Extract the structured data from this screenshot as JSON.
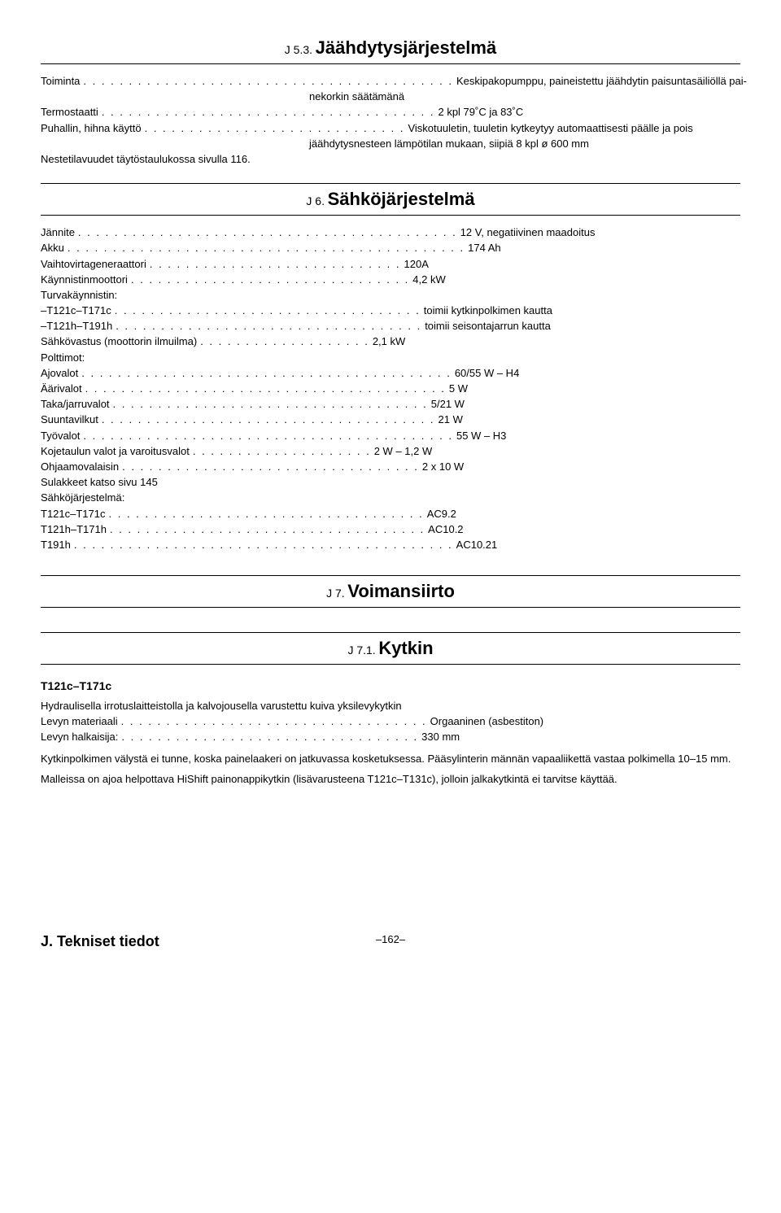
{
  "sections": {
    "j53": {
      "number": "J 5.3.",
      "title": "Jäähdytysjärjestelmä"
    },
    "j6": {
      "number": "J 6.",
      "title": "Sähköjärjestelmä"
    },
    "j7": {
      "number": "J 7.",
      "title": "Voimansiirto"
    },
    "j71": {
      "number": "J 7.1.",
      "title": "Kytkin"
    }
  },
  "j53_specs": [
    {
      "label": "Toiminta",
      "dots": ". . . . . . . . . . . . . . . . . . . . . . . . . . . . . . . . . . . . . . . . .",
      "value": "Keskipakopumppu, paineistettu jäähdytin paisuntasäiliöllä pai-"
    },
    {
      "label": "",
      "dots": "",
      "value": "nekorkin säätämänä",
      "indent": true
    },
    {
      "label": "Termostaatti",
      "dots": ". . . . . . . . . . . . . . . . . . . . . . . . . . . . . . . . . . . . .",
      "value": "2 kpl 79˚C ja 83˚C"
    },
    {
      "label": "Puhallin, hihna käyttö",
      "dots": ". . . . . . . . . . . . . . . . . . . . . . . . . . . . .",
      "value": "Viskotuuletin, tuuletin kytkeytyy automaattisesti päälle ja pois"
    },
    {
      "label": "",
      "dots": "",
      "value": "jäähdytysnesteen lämpötilan mukaan, siipiä 8 kpl ø 600 mm",
      "indent": true
    },
    {
      "label": "Nestetilavuudet täytöstaulukossa sivulla 116.",
      "dots": "",
      "value": ""
    }
  ],
  "j6_specs": [
    {
      "label": "Jännite",
      "dots": ". . . . . . . . . . . . . . . . . . . . . . . . . . . . . . . . . . . . . . . . . .",
      "value": "12 V, negatiivinen maadoitus"
    },
    {
      "label": "Akku",
      "dots": ". . . . . . . . . . . . . . . . . . . . . . . . . . . . . . . . . . . . . . . . . . . .",
      "value": "174 Ah"
    },
    {
      "label": "Vaihtovirtageneraattori",
      "dots": ". . . . . . . . . . . . . . . . . . . . . . . . . . . .",
      "value": "120A"
    },
    {
      "label": "Käynnistinmoottori",
      "dots": ". . . . . . . . . . . . . . . . . . . . . . . . . . . . . . .",
      "value": "4,2 kW"
    },
    {
      "label": "Turvakäynnistin:",
      "dots": "",
      "value": ""
    },
    {
      "label": "–T121c–T171c",
      "dots": ". . . . . . . . . . . . . . . . . . . . . . . . . . . . . . . . . .",
      "value": "toimii kytkinpolkimen kautta"
    },
    {
      "label": "–T121h–T191h",
      "dots": ". . . . . . . . . . . . . . . . . . . . . . . . . . . . . . . . . .",
      "value": "toimii seisontajarrun kautta"
    },
    {
      "label": "Sähkövastus (moottorin ilmuilma)",
      "dots": ". . . . . . . . . . . . . . . . . . .",
      "value": "2,1 kW"
    },
    {
      "label": "Polttimot:",
      "dots": "",
      "value": ""
    },
    {
      "label": "Ajovalot",
      "dots": ". . . . . . . . . . . . . . . . . . . . . . . . . . . . . . . . . . . . . . . . .",
      "value": "60/55 W – H4"
    },
    {
      "label": "Äärivalot",
      "dots": ". . . . . . . . . . . . . . . . . . . . . . . . . . . . . . . . . . . . . . . .",
      "value": "5 W"
    },
    {
      "label": "Taka/jarruvalot",
      "dots": ". . . . . . . . . . . . . . . . . . . . . . . . . . . . . . . . . . .",
      "value": "5/21 W"
    },
    {
      "label": "Suuntavilkut",
      "dots": ". . . . . . . . . . . . . . . . . . . . . . . . . . . . . . . . . . . . .",
      "value": "21 W"
    },
    {
      "label": "Työvalot",
      "dots": ". . . . . . . . . . . . . . . . . . . . . . . . . . . . . . . . . . . . . . . . .",
      "value": "55 W – H3"
    },
    {
      "label": "Kojetaulun valot ja varoitusvalot",
      "dots": ". . . . . . . . . . . . . . . . . . . .",
      "value": "2 W – 1,2 W"
    },
    {
      "label": "Ohjaamovalaisin",
      "dots": ". . . . . . . . . . . . . . . . . . . . . . . . . . . . . . . . .",
      "value": "2 x 10 W"
    },
    {
      "label": "Sulakkeet katso sivu 145",
      "dots": "",
      "value": ""
    },
    {
      "label": "Sähköjärjestelmä:",
      "dots": "",
      "value": ""
    },
    {
      "label": "T121c–T171c",
      "dots": " . . . . . . . . . . . . . . . . . . . . . . . . . . . . . . . . . . .",
      "value": "AC9.2"
    },
    {
      "label": "T121h–T171h",
      "dots": ". . . . . . . . . . . . . . . . . . . . . . . . . . . . . . . . . . .",
      "value": "AC10.2"
    },
    {
      "label": "T191h",
      "dots": " . . . . . . . . . . . . . . . . . . . . . . . . . . . . . . . . . . . . . . . . . .",
      "value": "AC10.21"
    }
  ],
  "j71_heading": "T121c–T171c",
  "j71_intro": "Hydraulisella irrotuslaitteistolla ja kalvojousella varustettu kuiva yksilevykytkin",
  "j71_specs": [
    {
      "label": "Levyn materiaali",
      "dots": ". . . . . . . . . . . . . . . . . . . . . . . . . . . . . . . . . .",
      "value": "Orgaaninen (asbestiton)"
    },
    {
      "label": "Levyn halkaisija:",
      "dots": " . . . . . . . . . . . . . . . . . . . . . . . . . . . . . . . . .",
      "value": "330 mm"
    }
  ],
  "j71_para1": "Kytkinpolkimen välystä ei tunne, koska painelaakeri on jatkuvassa kosketuksessa. Pääsylinterin männän vapaaliikettä vastaa polkimella 10–15 mm.",
  "j71_para2": "Malleissa on ajoa helpottava HiShift painonappikytkin (lisävarusteena T121c–T131c), jolloin jalkakytkintä ei tarvitse käyttää.",
  "footer": {
    "left": "J. Tekniset tiedot",
    "center": "–162–"
  }
}
